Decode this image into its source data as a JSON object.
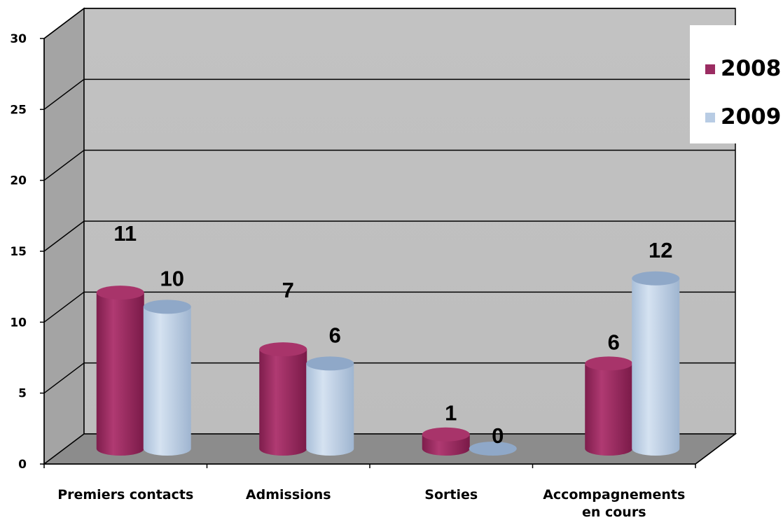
{
  "chart_data": {
    "type": "bar",
    "categories": [
      "Premiers contacts",
      "Admissions",
      "Sorties",
      "Accompagnements en cours"
    ],
    "category_lines": [
      [
        "Premiers contacts"
      ],
      [
        "Admissions"
      ],
      [
        "Sorties"
      ],
      [
        "Accompagnements",
        "en cours"
      ]
    ],
    "series": [
      {
        "name": "2008",
        "values": [
          11,
          7,
          1,
          6
        ],
        "color": "#9b2c62"
      },
      {
        "name": "2009",
        "values": [
          10,
          6,
          0,
          12
        ],
        "color": "#b8cce4"
      }
    ],
    "ylim": [
      0,
      30
    ],
    "y_ticks": [
      "0",
      "5",
      "10",
      "15",
      "20",
      "25",
      "30"
    ],
    "grid": true,
    "legend_position": "top-right",
    "style": "3d-cylinder",
    "colors": {
      "wall": "#c0c0c0",
      "floor": "#8c8c8c",
      "side_wall": "#a0a0a0"
    }
  }
}
